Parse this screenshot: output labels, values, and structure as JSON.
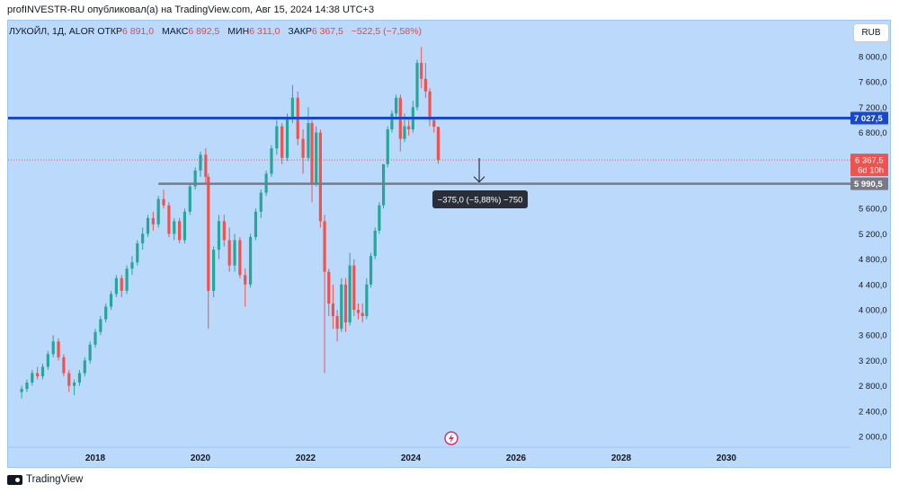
{
  "publication": {
    "text": "profINVESTR-RU опубликовал(а) на TradingView.com, Авг 15, 2024 14:38 UTC+3"
  },
  "legend": {
    "symbol": "ЛУКОЙЛ, 1Д, ALOR",
    "open_label": "ОТКР",
    "open_value": "6 891,0",
    "high_label": "МАКС",
    "high_value": "6 892,5",
    "low_label": "МИН",
    "low_value": "6 311,0",
    "close_label": "ЗАКР",
    "close_value": "6 367,5",
    "change": "−522,5 (−7,58%)"
  },
  "currency_button": "RUB",
  "footer": {
    "brand": "TradingView"
  },
  "colors": {
    "background": "#bbdafb",
    "up": "#26a69a",
    "down": "#ef5350",
    "resistance_line": "#1848cc",
    "support_line": "#787b86",
    "last_price_label": "#ef5350"
  },
  "chart_data": {
    "type": "candlestick",
    "y_axis": {
      "min": 1900,
      "max": 8200,
      "ticks": [
        8000,
        7600,
        7200,
        6800,
        5600,
        5200,
        4800,
        4400,
        4000,
        3600,
        3200,
        2800,
        2400,
        2000
      ],
      "tick_labels": [
        "8 000,0",
        "7 600,0",
        "7 200,0",
        "6 800,0",
        "5 600,0",
        "5 200,0",
        "4 800,0",
        "4 400,0",
        "4 000,0",
        "3 600,0",
        "3 200,0",
        "2 800,0",
        "2 400,0",
        "2 000,0"
      ]
    },
    "x_axis": {
      "ticks": [
        "2018",
        "2020",
        "2022",
        "2024",
        "2026",
        "2028",
        "2030"
      ]
    },
    "horizontal_lines": [
      {
        "name": "resistance",
        "value": 7027.5,
        "label": "7 027,5",
        "color": "#1848cc"
      },
      {
        "name": "support",
        "value": 5990.5,
        "label": "5 990,5",
        "color": "#787b86",
        "start_year": 2019.2
      }
    ],
    "last_price": {
      "value": 6367.5,
      "label": "6 367,5",
      "countdown": "6d 10h"
    },
    "measure": {
      "text": "−375,0 (−5,88%) −750",
      "arrow_at_year": 2025.3
    },
    "candles": [
      {
        "t": 2016.6,
        "o": 2700,
        "h": 2800,
        "l": 2600,
        "c": 2750
      },
      {
        "t": 2016.7,
        "o": 2750,
        "h": 2900,
        "l": 2700,
        "c": 2850
      },
      {
        "t": 2016.8,
        "o": 2850,
        "h": 3050,
        "l": 2800,
        "c": 3000
      },
      {
        "t": 2016.9,
        "o": 3000,
        "h": 3100,
        "l": 2900,
        "c": 2950
      },
      {
        "t": 2017.0,
        "o": 2950,
        "h": 3150,
        "l": 2900,
        "c": 3100
      },
      {
        "t": 2017.1,
        "o": 3100,
        "h": 3350,
        "l": 3050,
        "c": 3300
      },
      {
        "t": 2017.2,
        "o": 3300,
        "h": 3600,
        "l": 3250,
        "c": 3500
      },
      {
        "t": 2017.3,
        "o": 3500,
        "h": 3550,
        "l": 3200,
        "c": 3250
      },
      {
        "t": 2017.4,
        "o": 3250,
        "h": 3300,
        "l": 2950,
        "c": 3000
      },
      {
        "t": 2017.5,
        "o": 3000,
        "h": 3050,
        "l": 2700,
        "c": 2800
      },
      {
        "t": 2017.6,
        "o": 2800,
        "h": 2900,
        "l": 2650,
        "c": 2850
      },
      {
        "t": 2017.7,
        "o": 2850,
        "h": 3050,
        "l": 2800,
        "c": 3000
      },
      {
        "t": 2017.8,
        "o": 3000,
        "h": 3250,
        "l": 2950,
        "c": 3200
      },
      {
        "t": 2017.9,
        "o": 3200,
        "h": 3500,
        "l": 3150,
        "c": 3450
      },
      {
        "t": 2018.0,
        "o": 3450,
        "h": 3700,
        "l": 3400,
        "c": 3650
      },
      {
        "t": 2018.1,
        "o": 3650,
        "h": 3900,
        "l": 3600,
        "c": 3850
      },
      {
        "t": 2018.2,
        "o": 3850,
        "h": 4100,
        "l": 3800,
        "c": 4050
      },
      {
        "t": 2018.3,
        "o": 4050,
        "h": 4300,
        "l": 4000,
        "c": 4250
      },
      {
        "t": 2018.4,
        "o": 4250,
        "h": 4550,
        "l": 4200,
        "c": 4500
      },
      {
        "t": 2018.5,
        "o": 4500,
        "h": 4550,
        "l": 4200,
        "c": 4300
      },
      {
        "t": 2018.6,
        "o": 4300,
        "h": 4700,
        "l": 4250,
        "c": 4650
      },
      {
        "t": 2018.7,
        "o": 4650,
        "h": 4850,
        "l": 4550,
        "c": 4750
      },
      {
        "t": 2018.8,
        "o": 4750,
        "h": 5100,
        "l": 4700,
        "c": 5050
      },
      {
        "t": 2018.9,
        "o": 5050,
        "h": 5300,
        "l": 4950,
        "c": 5200
      },
      {
        "t": 2019.0,
        "o": 5200,
        "h": 5500,
        "l": 5150,
        "c": 5450
      },
      {
        "t": 2019.1,
        "o": 5450,
        "h": 5550,
        "l": 5250,
        "c": 5350
      },
      {
        "t": 2019.2,
        "o": 5350,
        "h": 5800,
        "l": 5300,
        "c": 5750
      },
      {
        "t": 2019.3,
        "o": 5750,
        "h": 5900,
        "l": 5600,
        "c": 5650
      },
      {
        "t": 2019.4,
        "o": 5650,
        "h": 5700,
        "l": 5150,
        "c": 5200
      },
      {
        "t": 2019.5,
        "o": 5200,
        "h": 5450,
        "l": 5100,
        "c": 5400
      },
      {
        "t": 2019.6,
        "o": 5400,
        "h": 5450,
        "l": 5050,
        "c": 5100
      },
      {
        "t": 2019.7,
        "o": 5100,
        "h": 5600,
        "l": 5050,
        "c": 5550
      },
      {
        "t": 2019.8,
        "o": 5550,
        "h": 6000,
        "l": 5500,
        "c": 5950
      },
      {
        "t": 2019.9,
        "o": 5950,
        "h": 6250,
        "l": 5900,
        "c": 6200
      },
      {
        "t": 2020.0,
        "o": 6200,
        "h": 6500,
        "l": 6100,
        "c": 6450
      },
      {
        "t": 2020.1,
        "o": 6450,
        "h": 6550,
        "l": 6000,
        "c": 6100
      },
      {
        "t": 2020.15,
        "o": 6100,
        "h": 6150,
        "l": 3700,
        "c": 4300
      },
      {
        "t": 2020.25,
        "o": 4300,
        "h": 5000,
        "l": 4200,
        "c": 4950
      },
      {
        "t": 2020.35,
        "o": 4950,
        "h": 5500,
        "l": 4800,
        "c": 5400
      },
      {
        "t": 2020.45,
        "o": 5400,
        "h": 5500,
        "l": 5000,
        "c": 5100
      },
      {
        "t": 2020.55,
        "o": 5100,
        "h": 5300,
        "l": 4600,
        "c": 4700
      },
      {
        "t": 2020.65,
        "o": 4700,
        "h": 5200,
        "l": 4600,
        "c": 5100
      },
      {
        "t": 2020.75,
        "o": 5100,
        "h": 5150,
        "l": 4500,
        "c": 4550
      },
      {
        "t": 2020.85,
        "o": 4550,
        "h": 4650,
        "l": 4050,
        "c": 4400
      },
      {
        "t": 2020.95,
        "o": 4400,
        "h": 5200,
        "l": 4350,
        "c": 5150
      },
      {
        "t": 2021.05,
        "o": 5150,
        "h": 5600,
        "l": 5100,
        "c": 5550
      },
      {
        "t": 2021.15,
        "o": 5550,
        "h": 5900,
        "l": 5450,
        "c": 5850
      },
      {
        "t": 2021.25,
        "o": 5850,
        "h": 6200,
        "l": 5800,
        "c": 6150
      },
      {
        "t": 2021.35,
        "o": 6150,
        "h": 6600,
        "l": 6100,
        "c": 6550
      },
      {
        "t": 2021.45,
        "o": 6550,
        "h": 7000,
        "l": 6450,
        "c": 6900
      },
      {
        "t": 2021.55,
        "o": 6900,
        "h": 6950,
        "l": 6300,
        "c": 6400
      },
      {
        "t": 2021.65,
        "o": 6400,
        "h": 7100,
        "l": 6350,
        "c": 7050
      },
      {
        "t": 2021.75,
        "o": 7050,
        "h": 7550,
        "l": 6950,
        "c": 7350
      },
      {
        "t": 2021.85,
        "o": 7350,
        "h": 7450,
        "l": 6600,
        "c": 6700
      },
      {
        "t": 2021.95,
        "o": 6700,
        "h": 6850,
        "l": 6150,
        "c": 6400
      },
      {
        "t": 2022.05,
        "o": 6400,
        "h": 7200,
        "l": 6350,
        "c": 6950
      },
      {
        "t": 2022.12,
        "o": 6950,
        "h": 7000,
        "l": 5700,
        "c": 6000
      },
      {
        "t": 2022.2,
        "o": 6000,
        "h": 6900,
        "l": 5950,
        "c": 6800
      },
      {
        "t": 2022.28,
        "o": 6800,
        "h": 6850,
        "l": 5300,
        "c": 5400
      },
      {
        "t": 2022.36,
        "o": 5400,
        "h": 5500,
        "l": 3000,
        "c": 4600
      },
      {
        "t": 2022.44,
        "o": 4600,
        "h": 4650,
        "l": 3900,
        "c": 4100
      },
      {
        "t": 2022.52,
        "o": 4100,
        "h": 4400,
        "l": 3700,
        "c": 3900
      },
      {
        "t": 2022.6,
        "o": 3900,
        "h": 4000,
        "l": 3500,
        "c": 3700
      },
      {
        "t": 2022.68,
        "o": 3700,
        "h": 4500,
        "l": 3650,
        "c": 4400
      },
      {
        "t": 2022.76,
        "o": 4400,
        "h": 4500,
        "l": 3650,
        "c": 3800
      },
      {
        "t": 2022.84,
        "o": 3800,
        "h": 4900,
        "l": 3750,
        "c": 4700
      },
      {
        "t": 2022.92,
        "o": 4700,
        "h": 4800,
        "l": 3900,
        "c": 4000
      },
      {
        "t": 2023.0,
        "o": 4000,
        "h": 4100,
        "l": 3850,
        "c": 3950
      },
      {
        "t": 2023.08,
        "o": 3950,
        "h": 4100,
        "l": 3800,
        "c": 3900
      },
      {
        "t": 2023.16,
        "o": 3900,
        "h": 4500,
        "l": 3850,
        "c": 4400
      },
      {
        "t": 2023.24,
        "o": 4400,
        "h": 4900,
        "l": 4350,
        "c": 4850
      },
      {
        "t": 2023.32,
        "o": 4850,
        "h": 5300,
        "l": 4800,
        "c": 5250
      },
      {
        "t": 2023.4,
        "o": 5250,
        "h": 5700,
        "l": 5200,
        "c": 5650
      },
      {
        "t": 2023.48,
        "o": 5650,
        "h": 6300,
        "l": 5600,
        "c": 6300
      },
      {
        "t": 2023.56,
        "o": 6300,
        "h": 6900,
        "l": 6250,
        "c": 6850
      },
      {
        "t": 2023.64,
        "o": 6850,
        "h": 7150,
        "l": 6800,
        "c": 7100
      },
      {
        "t": 2023.72,
        "o": 7100,
        "h": 7400,
        "l": 7050,
        "c": 7350
      },
      {
        "t": 2023.8,
        "o": 7350,
        "h": 7400,
        "l": 6500,
        "c": 6700
      },
      {
        "t": 2023.88,
        "o": 6700,
        "h": 7100,
        "l": 6650,
        "c": 6900
      },
      {
        "t": 2023.96,
        "o": 6900,
        "h": 7050,
        "l": 6750,
        "c": 6850
      },
      {
        "t": 2024.04,
        "o": 6850,
        "h": 7300,
        "l": 6800,
        "c": 7200
      },
      {
        "t": 2024.12,
        "o": 7200,
        "h": 7950,
        "l": 7150,
        "c": 7900
      },
      {
        "t": 2024.2,
        "o": 7900,
        "h": 8150,
        "l": 7500,
        "c": 7650
      },
      {
        "t": 2024.28,
        "o": 7650,
        "h": 7900,
        "l": 7350,
        "c": 7450
      },
      {
        "t": 2024.36,
        "o": 7450,
        "h": 7500,
        "l": 6900,
        "c": 7000
      },
      {
        "t": 2024.44,
        "o": 7000,
        "h": 7050,
        "l": 6800,
        "c": 6891
      },
      {
        "t": 2024.52,
        "o": 6891,
        "h": 6892.5,
        "l": 6311,
        "c": 6367.5
      }
    ]
  }
}
